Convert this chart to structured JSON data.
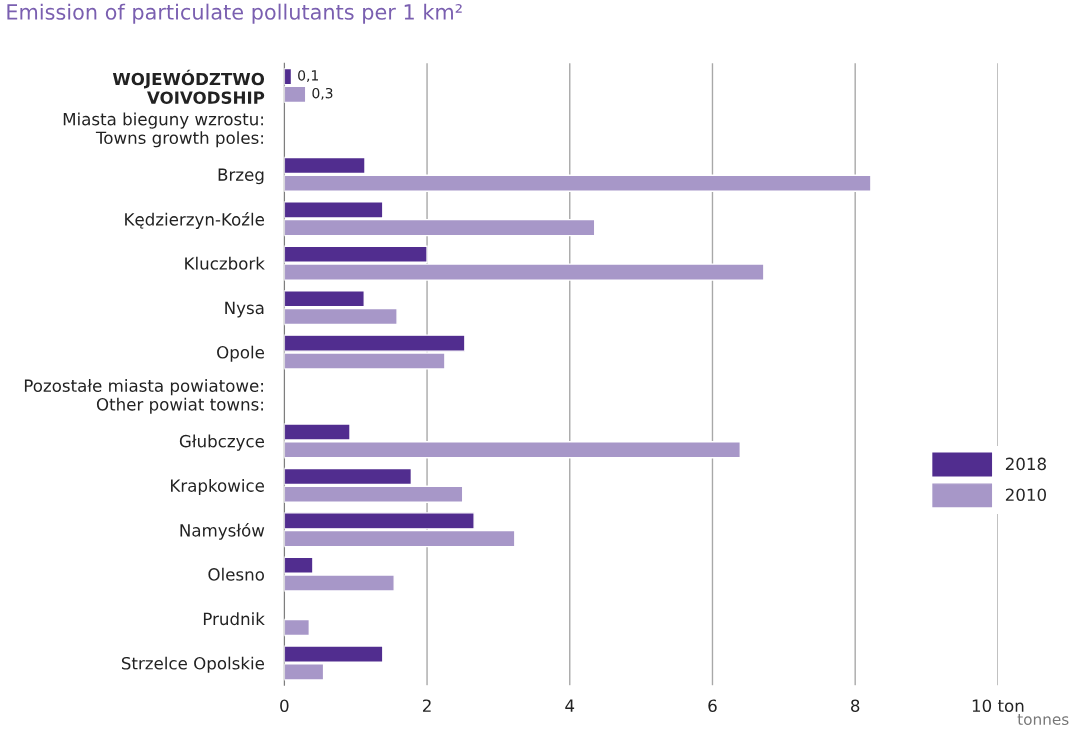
{
  "chart_data": {
    "type": "bar",
    "orientation": "horizontal",
    "title": "Emission of particulate pollutants per 1 km²",
    "categories": [
      "WOJEWÓDZTWO\nVOIVODSHIP",
      null,
      "Brzeg",
      "Kędzierzyn-Koźle",
      "Kluczbork",
      "Nysa",
      "Opole",
      null,
      "Głubczyce",
      "Krapkowice",
      "Namysłów",
      "Olesno",
      "Prudnik",
      "Strzelce Opolskie"
    ],
    "series": [
      {
        "name": "2018",
        "color": "#512d8f",
        "values": [
          0.1,
          null,
          1.13,
          1.38,
          2.0,
          1.12,
          2.53,
          null,
          0.92,
          1.78,
          2.66,
          0.4,
          null,
          1.38
        ],
        "value_labels": [
          "0,1",
          null,
          null,
          null,
          null,
          null,
          null,
          null,
          null,
          null,
          null,
          null,
          null,
          null
        ]
      },
      {
        "name": "2010",
        "color": "#a797c8",
        "values": [
          0.3,
          null,
          8.22,
          4.35,
          6.72,
          1.58,
          2.25,
          null,
          6.39,
          2.5,
          3.23,
          1.54,
          0.35,
          0.55
        ],
        "value_labels": [
          "0,3",
          null,
          null,
          null,
          null,
          null,
          null,
          null,
          null,
          null,
          null,
          null,
          null,
          null
        ]
      }
    ],
    "xlim": [
      0,
      10
    ],
    "xticks": [
      0,
      2,
      4,
      6,
      8,
      {
        "value": 10,
        "label": "10 ton"
      }
    ],
    "annotations": [
      "Miasta bieguny wzrostu:\nTowns growth poles:",
      "Pozostałe miasta powiatowe:\nOther powiat towns:"
    ],
    "xlabel": "tonnes",
    "grid": "x",
    "legend": "right"
  }
}
